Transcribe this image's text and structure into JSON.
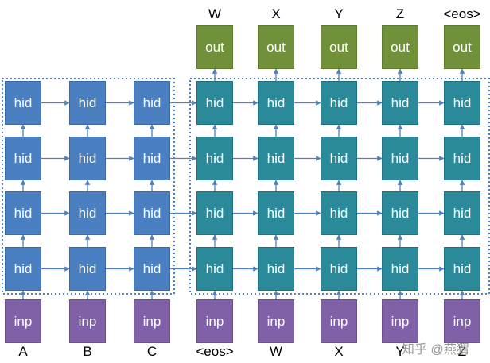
{
  "cells": {
    "hidden": "hid",
    "input": "inp",
    "output": "out"
  },
  "encoder_inputs": [
    "A",
    "B",
    "C"
  ],
  "decoder_inputs": [
    "<eos>",
    "W",
    "X",
    "Y",
    "Z"
  ],
  "decoder_outputs": [
    "W",
    "X",
    "Y",
    "Z",
    "<eos>"
  ],
  "hidden_layers": 4,
  "colors": {
    "encoder_hidden": "#4a7fc1",
    "decoder_hidden": "#2a8a9a",
    "input": "#8061a8",
    "output": "#70913a",
    "arrow": "#4f81bd"
  },
  "watermark": "知乎 @燕猬"
}
